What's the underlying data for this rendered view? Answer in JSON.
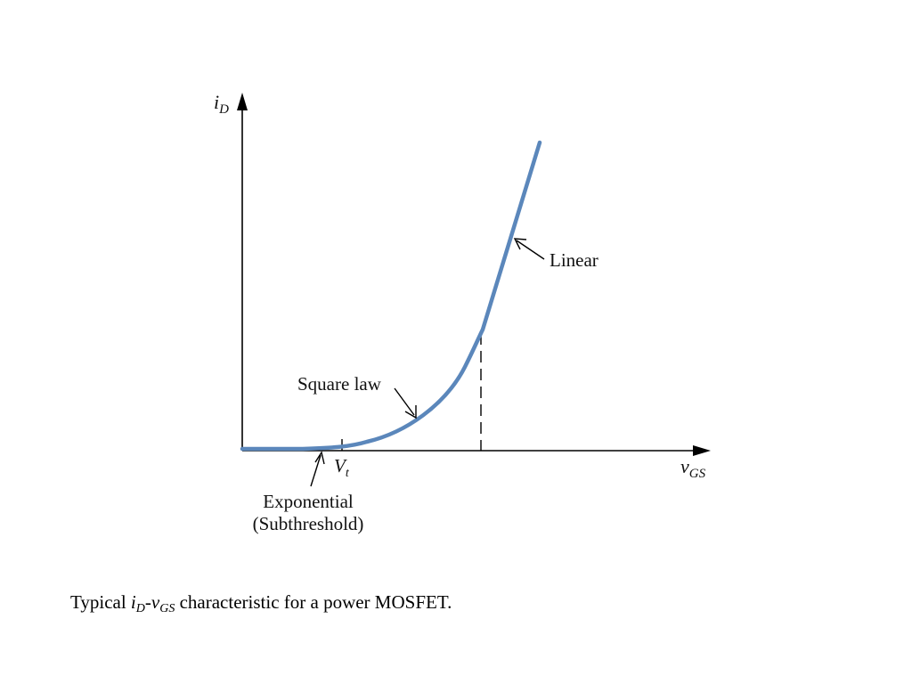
{
  "diagram": {
    "y_axis_label": {
      "symbol": "i",
      "subscript": "D"
    },
    "x_axis_label": {
      "symbol": "v",
      "subscript": "GS"
    },
    "threshold_label": {
      "symbol": "V",
      "subscript": "t"
    },
    "regions": {
      "linear": "Linear",
      "square_law": "Square law",
      "exponential": "Exponential",
      "subthreshold": "(Subthreshold)"
    },
    "colors": {
      "curve": "#5b87bb",
      "axes": "#000000"
    }
  },
  "caption": {
    "prefix": "Typical ",
    "sym1": "i",
    "sub1": "D",
    "dash": "-",
    "sym2": "v",
    "sub2": "GS",
    "suffix": " characteristic for a power MOSFET."
  }
}
